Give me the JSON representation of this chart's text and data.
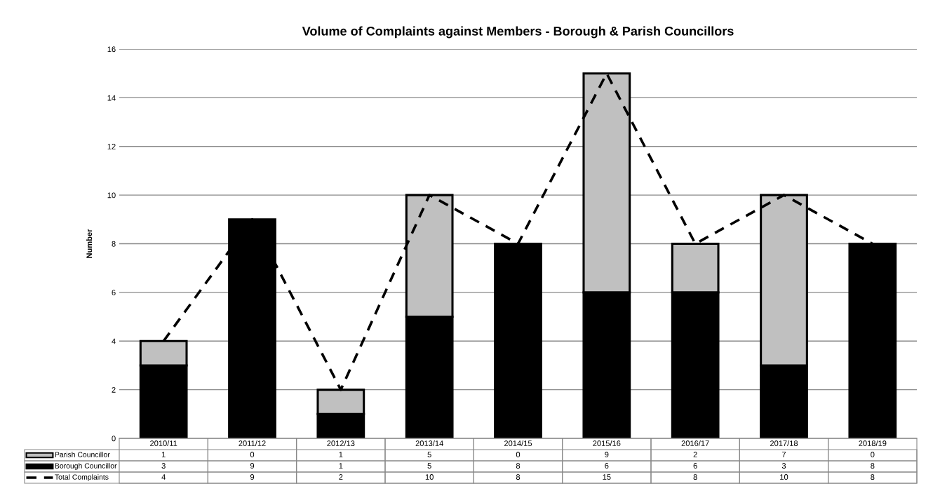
{
  "chart_data": {
    "type": "bar",
    "title": "Volume of Complaints against Members - Borough & Parish Councillors",
    "ylabel": "Number",
    "categories": [
      "2010/11",
      "2011/12",
      "2012/13",
      "2013/14",
      "2014/15",
      "2015/16",
      "2016/17",
      "2017/18",
      "2018/19"
    ],
    "stacked": true,
    "series": [
      {
        "name": "Borough Councillor",
        "color": "#000000",
        "values": [
          3,
          9,
          1,
          5,
          8,
          6,
          6,
          3,
          8
        ]
      },
      {
        "name": "Parish Councillor",
        "color": "#c0c0c0",
        "values": [
          1,
          0,
          1,
          5,
          0,
          9,
          2,
          7,
          0
        ]
      },
      {
        "name": "Total Complaints",
        "type": "line",
        "line_style": "dashed",
        "color": "#000000",
        "values": [
          4,
          9,
          2,
          10,
          8,
          15,
          8,
          10,
          8
        ]
      }
    ],
    "ylim": [
      0,
      16
    ],
    "yticks": [
      0,
      2,
      4,
      6,
      8,
      10,
      12,
      14,
      16
    ],
    "grid": "y",
    "legend": "bottom",
    "data_labels": true
  }
}
